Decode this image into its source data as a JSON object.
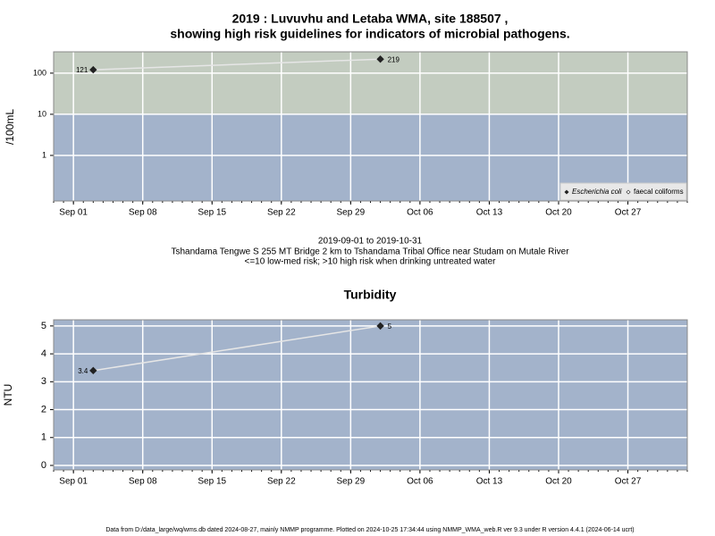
{
  "chart_data": [
    {
      "type": "line",
      "title": [
        "2019 : Luvuvhu and Letaba WMA, site 188507 ,",
        "showing high risk guidelines for indicators of microbial pathogens."
      ],
      "caption": [
        "2019-09-01 to 2019-10-31",
        "Tshandama Tengwe S 255 MT Bridge 2 km to Tshandama Tribal Office near Studam on Mutale River",
        "<=10 low-med risk; >10 high risk when drinking untreated water"
      ],
      "y_label": "/100mL",
      "log_y": true,
      "threshold": 10,
      "band_colors": [
        "#a3b3cb",
        "#c3ccc0"
      ],
      "x": [
        "2019-09-03",
        "2019-10-02"
      ],
      "series": [
        {
          "name": "Escherichia coli",
          "color": "#222222",
          "marker": "filled",
          "values": [
            121,
            219
          ]
        },
        {
          "name": "faecal coliforms",
          "color": "#222222",
          "marker": "open",
          "values": [
            null,
            null
          ]
        }
      ],
      "xlim": [
        "2019-08-30",
        "2019-11-02"
      ],
      "xticks": [
        {
          "value": "2019-09-01",
          "label": "Sep 01"
        },
        {
          "value": "2019-09-08",
          "label": "Sep 08"
        },
        {
          "value": "2019-09-15",
          "label": "Sep 15"
        },
        {
          "value": "2019-09-22",
          "label": "Sep 22"
        },
        {
          "value": "2019-09-29",
          "label": "Sep 29"
        },
        {
          "value": "2019-10-06",
          "label": "Oct 06"
        },
        {
          "value": "2019-10-13",
          "label": "Oct 13"
        },
        {
          "value": "2019-10-20",
          "label": "Oct 20"
        },
        {
          "value": "2019-10-27",
          "label": "Oct 27"
        }
      ],
      "ylim": [
        0.078,
        330
      ],
      "yticks": [
        1,
        10,
        100
      ],
      "grid": true,
      "legend": "bottom-right"
    },
    {
      "type": "line",
      "title": "Turbidity",
      "y_label": "NTU",
      "log_y": false,
      "band_colors": [
        "#a3b3cb"
      ],
      "x": [
        "2019-09-03",
        "2019-10-02"
      ],
      "series": [
        {
          "name": "Turbidity",
          "color": "#222222",
          "marker": "filled",
          "values": [
            3.4,
            5
          ]
        }
      ],
      "xlim": [
        "2019-08-30",
        "2019-11-02"
      ],
      "xticks": [
        {
          "value": "2019-09-01",
          "label": "Sep 01"
        },
        {
          "value": "2019-09-08",
          "label": "Sep 08"
        },
        {
          "value": "2019-09-15",
          "label": "Sep 15"
        },
        {
          "value": "2019-09-22",
          "label": "Sep 22"
        },
        {
          "value": "2019-09-29",
          "label": "Sep 29"
        },
        {
          "value": "2019-10-06",
          "label": "Oct 06"
        },
        {
          "value": "2019-10-13",
          "label": "Oct 13"
        },
        {
          "value": "2019-10-20",
          "label": "Oct 20"
        },
        {
          "value": "2019-10-27",
          "label": "Oct 27"
        }
      ],
      "ylim": [
        -0.16,
        5.22
      ],
      "yticks": [
        0,
        1,
        2,
        3,
        4,
        5
      ],
      "grid": true
    }
  ],
  "footer": "Data from D:/data_large/wq/wms.db dated 2024-08-27, mainly NMMP programme. Plotted on 2024-10-25 17:34:44 using NMMP_WMA_web.R ver 9.3 under R version 4.4.1 (2024-06-14 ucrt)"
}
